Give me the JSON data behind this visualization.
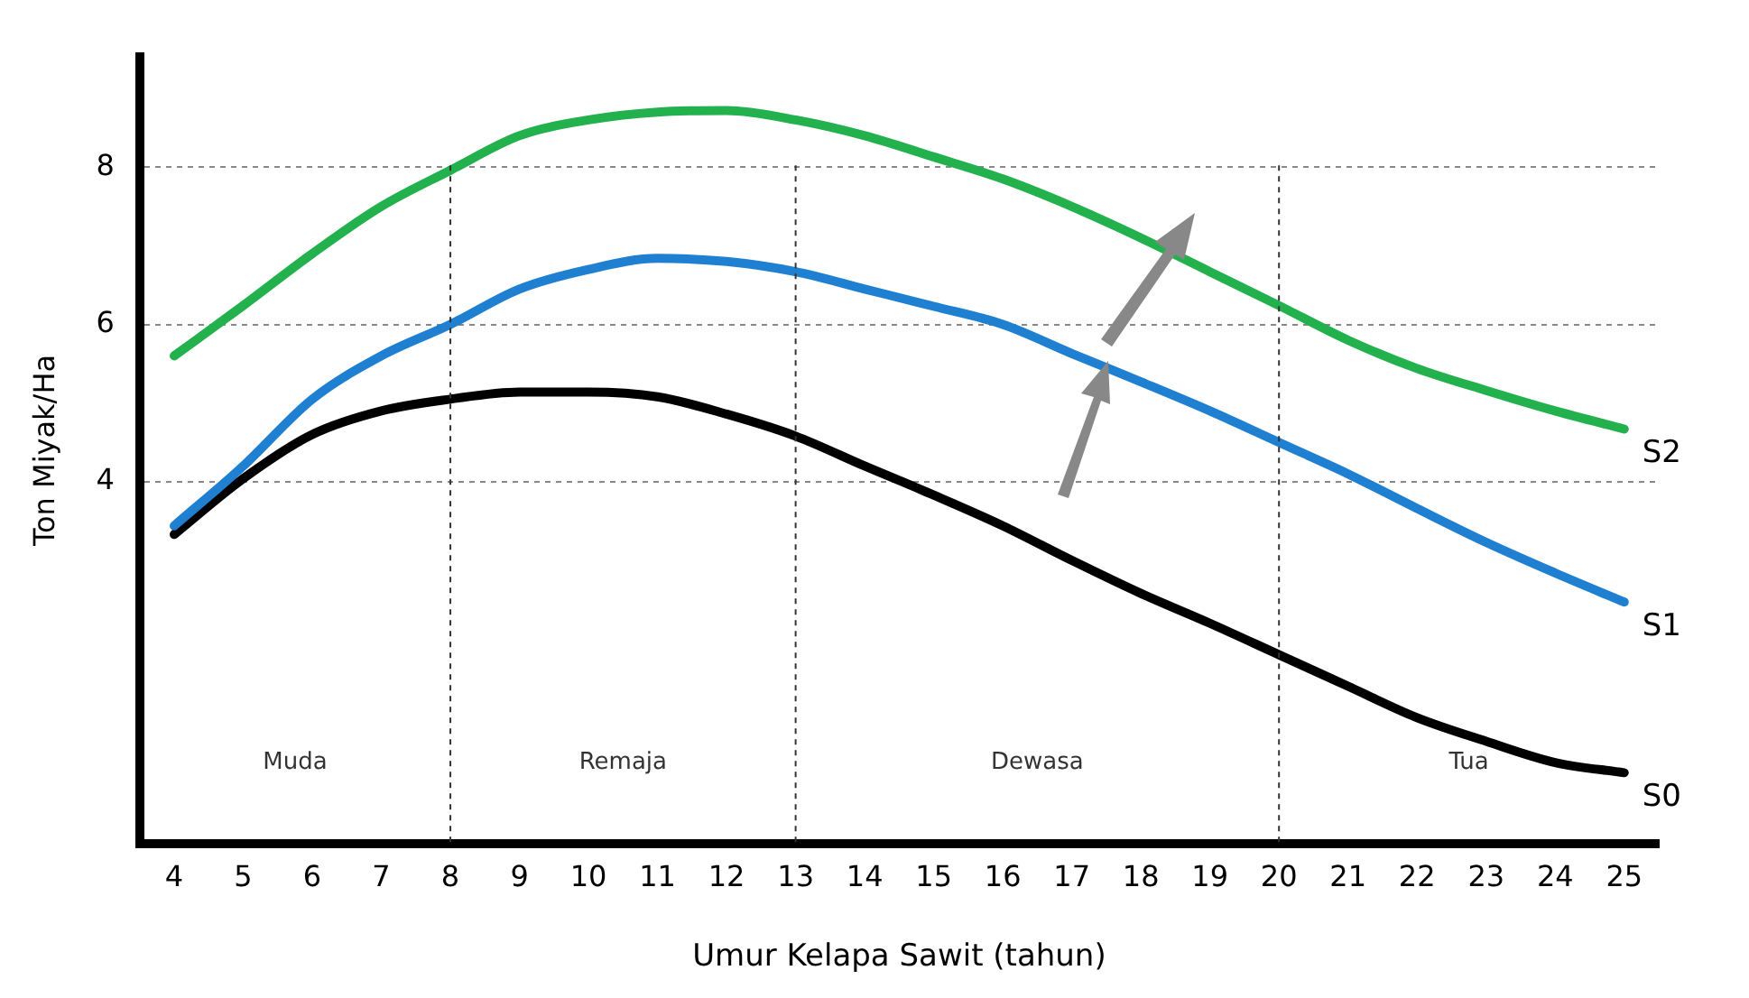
{
  "chart_data": {
    "type": "line",
    "xlabel": "Umur Kelapa Sawit (tahun)",
    "ylabel": "Ton Miyak/Ha",
    "categories": [
      "4",
      "5",
      "6",
      "7",
      "8",
      "9",
      "10",
      "11",
      "12",
      "13",
      "14",
      "15",
      "16",
      "17",
      "18",
      "19",
      "20",
      "21",
      "22",
      "23",
      "24",
      "25"
    ],
    "series": [
      {
        "name": "S2",
        "color": "#22b14c",
        "values": [
          5.6,
          6.24,
          6.9,
          7.5,
          7.96,
          8.4,
          8.6,
          8.7,
          8.72,
          8.6,
          8.4,
          8.13,
          7.85,
          7.5,
          7.1,
          6.67,
          6.24,
          5.8,
          5.44,
          5.16,
          4.9,
          4.67
        ]
      },
      {
        "name": "S1",
        "color": "#1f7fd0",
        "values": [
          3.44,
          4.2,
          5.05,
          5.6,
          6.0,
          6.45,
          6.7,
          6.84,
          6.8,
          6.67,
          6.45,
          6.23,
          6.0,
          5.63,
          5.27,
          4.9,
          4.5,
          4.1,
          3.66,
          3.23,
          2.84,
          2.47
        ]
      },
      {
        "name": "S0",
        "color": "#000000",
        "values": [
          3.33,
          4.04,
          4.6,
          4.9,
          5.05,
          5.14,
          5.14,
          5.08,
          4.86,
          4.58,
          4.2,
          3.83,
          3.44,
          3.0,
          2.58,
          2.2,
          1.8,
          1.4,
          1.0,
          0.7,
          0.43,
          0.3
        ]
      }
    ],
    "ylim": [
      -0.6,
      9.4
    ],
    "yticks": [
      4,
      6,
      8
    ],
    "grid": "y",
    "legend": false,
    "marker": "none",
    "line_style": "solid",
    "ref_lines": [
      {
        "axis": "x",
        "value": "8"
      },
      {
        "axis": "x",
        "value": "13"
      },
      {
        "axis": "x",
        "value": "20"
      }
    ],
    "annotations": [
      "Muda",
      "Remaja",
      "Dewasa",
      "Tua"
    ]
  }
}
